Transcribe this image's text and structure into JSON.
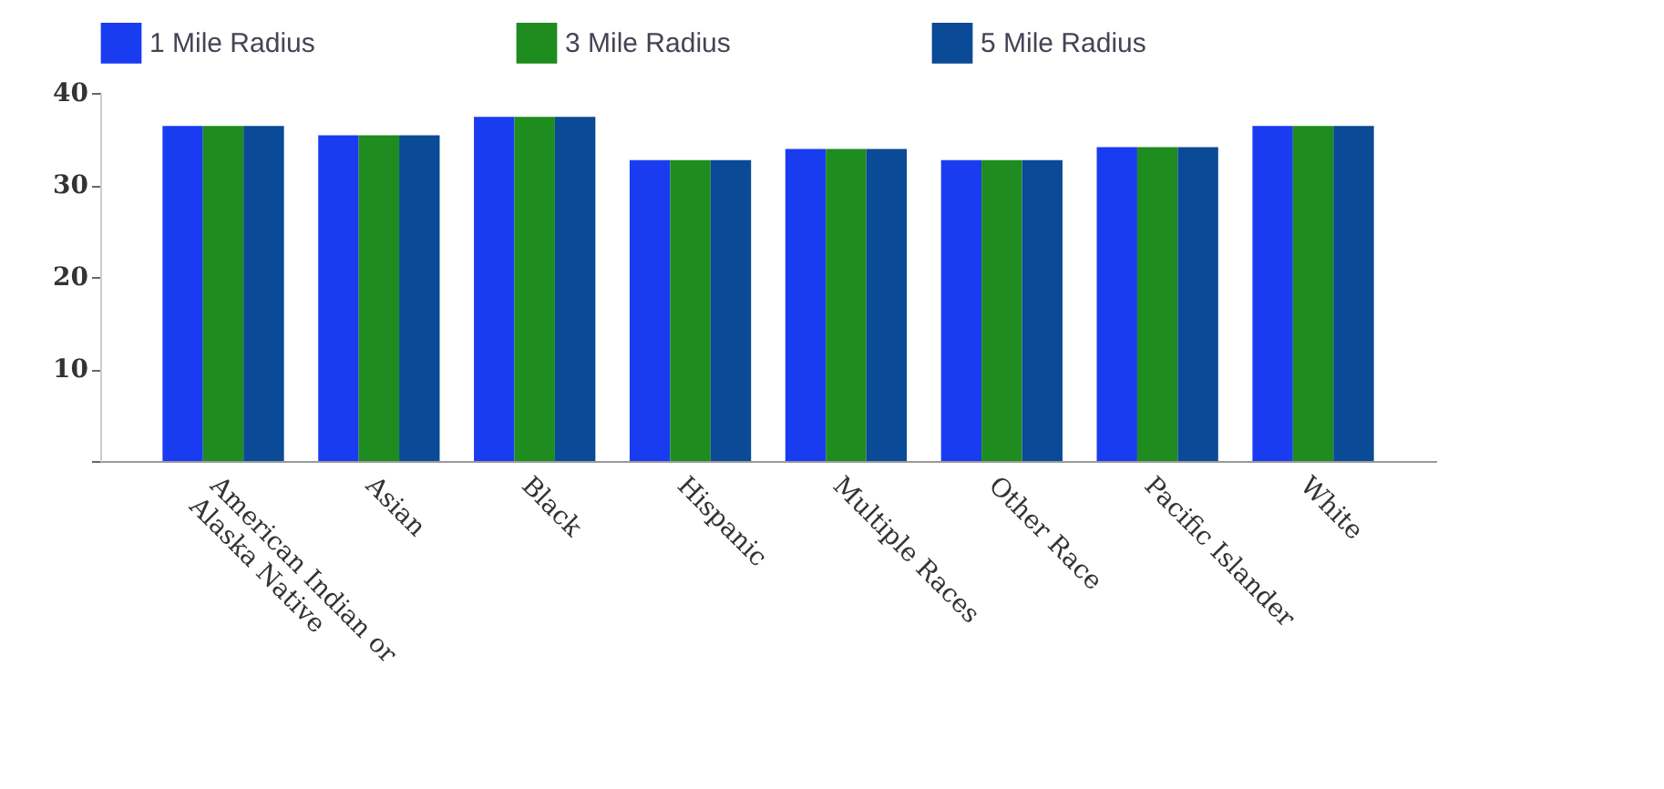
{
  "chart_data": {
    "type": "bar",
    "categories": [
      "American Indian or Alaska Native",
      "Asian",
      "Black",
      "Hispanic",
      "Multiple Races",
      "Other Race",
      "Pacific Islander",
      "White"
    ],
    "series": [
      {
        "name": "1 Mile Radius",
        "color": "#1a3cf0",
        "values": [
          36.4,
          35.4,
          37.4,
          32.7,
          33.9,
          32.7,
          34.1,
          36.4
        ]
      },
      {
        "name": "3 Mile Radius",
        "color": "#1e8c1e",
        "values": [
          36.4,
          35.4,
          37.4,
          32.7,
          33.9,
          32.7,
          34.1,
          36.4
        ]
      },
      {
        "name": "5 Mile Radius",
        "color": "#0a4a96",
        "values": [
          36.4,
          35.4,
          37.4,
          32.7,
          33.9,
          32.7,
          34.1,
          36.4
        ]
      }
    ],
    "ylim": [
      0,
      40
    ],
    "yticks": [
      {
        "value": 0,
        "label": null
      },
      10,
      20,
      30,
      40
    ],
    "grid": false,
    "legend": "top"
  }
}
